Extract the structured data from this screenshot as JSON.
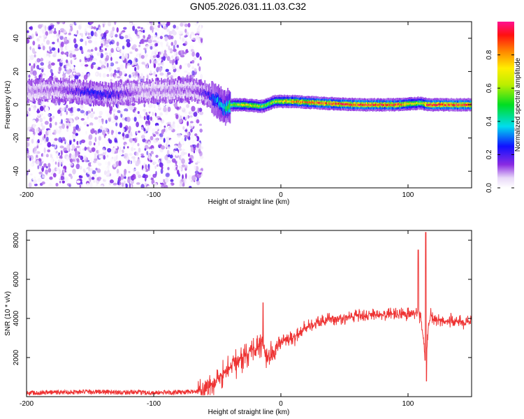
{
  "title": "GN05.2026.031.11.03.C32",
  "chart_data": [
    {
      "type": "heatmap",
      "name": "spectrogram",
      "xlabel": "Height of straight line (km)",
      "ylabel": "Frequency (Hz)",
      "xlim": [
        -200,
        150
      ],
      "ylim": [
        -50,
        50
      ],
      "xticks": [
        -200,
        -100,
        0,
        100
      ],
      "yticks": [
        -40,
        -20,
        0,
        20,
        40
      ],
      "colorbar": {
        "label": "Normalized spectral amplitude",
        "range": [
          0,
          1
        ],
        "ticks": [
          0,
          0.2,
          0.4,
          0.6,
          0.8
        ],
        "tick_labels": [
          "0.0",
          "0.2",
          "0.4",
          "0.6",
          "0.8"
        ]
      },
      "noise_region_x": [
        -200,
        -62
      ],
      "noise_amplitude_range": [
        0.0,
        0.2
      ],
      "signal_track": [
        {
          "x": -200,
          "freq": 8,
          "amp": 0.1
        },
        {
          "x": -175,
          "freq": 9,
          "amp": 0.12
        },
        {
          "x": -150,
          "freq": 7,
          "amp": 0.25
        },
        {
          "x": -135,
          "freq": 6,
          "amp": 0.22
        },
        {
          "x": -110,
          "freq": 8,
          "amp": 0.1
        },
        {
          "x": -70,
          "freq": 9,
          "amp": 0.12
        },
        {
          "x": -60,
          "freq": 7,
          "amp": 0.2
        },
        {
          "x": -50,
          "freq": 2,
          "amp": 0.35
        },
        {
          "x": -45,
          "freq": -2,
          "amp": 0.4
        },
        {
          "x": -40,
          "freq": 0,
          "amp": 0.55
        },
        {
          "x": -30,
          "freq": 0,
          "amp": 0.7
        },
        {
          "x": -15,
          "freq": -1,
          "amp": 0.6
        },
        {
          "x": -5,
          "freq": 2,
          "amp": 0.65
        },
        {
          "x": 10,
          "freq": 2,
          "amp": 0.8
        },
        {
          "x": 30,
          "freq": 1,
          "amp": 0.85
        },
        {
          "x": 60,
          "freq": 0,
          "amp": 0.9
        },
        {
          "x": 90,
          "freq": 0,
          "amp": 0.88
        },
        {
          "x": 110,
          "freq": 1,
          "amp": 0.6
        },
        {
          "x": 115,
          "freq": 0,
          "amp": 0.92
        },
        {
          "x": 150,
          "freq": 0,
          "amp": 0.9
        }
      ]
    },
    {
      "type": "line",
      "name": "snr",
      "xlabel": "Height of straight line (km)",
      "ylabel": "SNR (10 * v/v)",
      "xlim": [
        -200,
        150
      ],
      "ylim": [
        0,
        8500
      ],
      "xticks": [
        -200,
        -100,
        0,
        100
      ],
      "yticks": [
        2000,
        4000,
        6000,
        8000
      ],
      "color": "#ee3333",
      "series": [
        {
          "name": "SNR",
          "x": [
            -200,
            -150,
            -100,
            -65,
            -55,
            -45,
            -40,
            -30,
            -20,
            -15,
            -10,
            -5,
            0,
            10,
            20,
            40,
            60,
            80,
            100,
            108,
            110,
            112,
            114,
            116,
            118,
            120,
            150
          ],
          "y": [
            200,
            250,
            200,
            250,
            600,
            1200,
            1500,
            2000,
            2500,
            2800,
            1800,
            2400,
            2800,
            3000,
            3600,
            4000,
            4100,
            4200,
            4200,
            4300,
            4000,
            3000,
            1500,
            3600,
            4200,
            3900,
            3800
          ]
        }
      ],
      "spikes": [
        {
          "x": -14,
          "y": 4800
        },
        {
          "x": 108,
          "y": 7500
        },
        {
          "x": 114,
          "y": 8400
        },
        {
          "x": 114.5,
          "y": 800
        }
      ]
    }
  ]
}
